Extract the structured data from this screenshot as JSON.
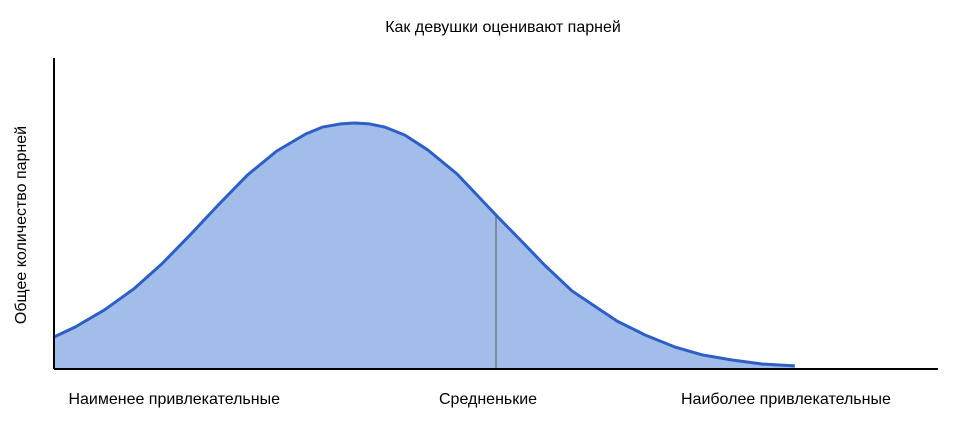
{
  "chart_data": {
    "type": "area",
    "title": "Как девушки оценивают парней",
    "y_label": "Общее количество парней",
    "x": [
      0,
      2.4,
      5.7,
      9.0,
      12.2,
      15.4,
      18.7,
      21.9,
      25.2,
      28.5,
      30.4,
      32.4,
      34.0,
      35.7,
      37.4,
      39.7,
      42.3,
      45.6,
      50.1,
      53.3,
      55.5,
      58.6,
      61.8,
      63.7,
      66.9,
      70.2,
      73.4,
      76.7,
      80.1,
      83.8
    ],
    "values": [
      10.3,
      13.5,
      19.0,
      25.7,
      33.8,
      43.1,
      53.1,
      62.4,
      70.1,
      75.6,
      77.8,
      78.8,
      79.1,
      78.8,
      77.8,
      75.2,
      70.4,
      62.7,
      49.2,
      39.9,
      33.4,
      25.1,
      19.0,
      15.4,
      10.9,
      7.1,
      4.5,
      2.9,
      1.6,
      1.0
    ],
    "color": "#2d5fc4",
    "fill": "#a2bdea",
    "xlim": [
      0,
      100
    ],
    "ylim": [
      0,
      100
    ],
    "xticks": [
      {
        "value": 13.6,
        "label": "Наименее привлекательные"
      },
      {
        "value": 49.1,
        "label": "Средненькие"
      },
      {
        "value": 82.8,
        "label": "Наиболее привлекательные"
      }
    ],
    "marker_x": 50
  }
}
